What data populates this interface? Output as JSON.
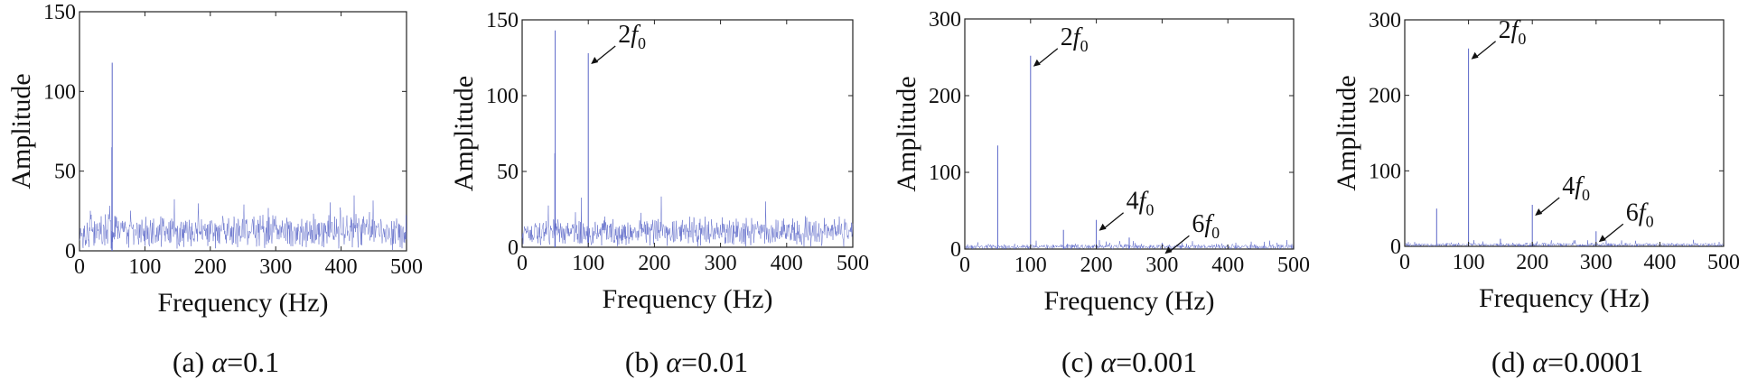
{
  "figure": {
    "panels": [
      {
        "id": "a",
        "caption_prefix": "(a)",
        "caption_symbol": "α",
        "caption_value": "=0.1"
      },
      {
        "id": "b",
        "caption_prefix": "(b)",
        "caption_symbol": "α",
        "caption_value": "=0.01"
      },
      {
        "id": "c",
        "caption_prefix": "(c)",
        "caption_symbol": "α",
        "caption_value": "=0.001"
      },
      {
        "id": "d",
        "caption_prefix": "(d)",
        "caption_symbol": "α",
        "caption_value": "=0.0001"
      }
    ]
  },
  "chart_data": [
    {
      "type": "line",
      "title": "",
      "xlabel": "Frequency (Hz)",
      "ylabel": "Amplitude",
      "xlim": [
        0,
        500
      ],
      "ylim": [
        0,
        150
      ],
      "xticks": [
        0,
        100,
        200,
        300,
        400,
        500
      ],
      "yticks": [
        0,
        50,
        100,
        150
      ],
      "line_color": "#5a66c8",
      "noise": {
        "base": 12,
        "spread": 12,
        "max": 36
      },
      "peaks": [
        {
          "x": 50,
          "y": 118
        },
        {
          "x": 49.5,
          "y": 65
        }
      ],
      "annotations": []
    },
    {
      "type": "line",
      "title": "",
      "xlabel": "Frequency (Hz)",
      "ylabel": "Amplitude",
      "xlim": [
        0,
        500
      ],
      "ylim": [
        0,
        150
      ],
      "xticks": [
        0,
        100,
        200,
        300,
        400,
        500
      ],
      "yticks": [
        0,
        50,
        100,
        150
      ],
      "line_color": "#5a66c8",
      "noise": {
        "base": 10,
        "spread": 11,
        "max": 34
      },
      "peaks": [
        {
          "x": 50,
          "y": 143
        },
        {
          "x": 49.5,
          "y": 62
        },
        {
          "x": 100,
          "y": 128
        }
      ],
      "annotations": [
        {
          "label": "2",
          "sub": "0",
          "x": 100,
          "y": 128
        }
      ]
    },
    {
      "type": "line",
      "title": "",
      "xlabel": "Frequency (Hz)",
      "ylabel": "Amplitude",
      "xlim": [
        0,
        500
      ],
      "ylim": [
        0,
        300
      ],
      "xticks": [
        0,
        100,
        200,
        300,
        400,
        500
      ],
      "yticks": [
        0,
        100,
        200,
        300
      ],
      "line_color": "#5a66c8",
      "noise": {
        "base": 3,
        "spread": 4,
        "max": 12
      },
      "peaks": [
        {
          "x": 50,
          "y": 135
        },
        {
          "x": 100,
          "y": 252
        },
        {
          "x": 150,
          "y": 25
        },
        {
          "x": 200,
          "y": 38
        },
        {
          "x": 250,
          "y": 15
        },
        {
          "x": 300,
          "y": 8
        }
      ],
      "annotations": [
        {
          "label": "2",
          "sub": "0",
          "x": 100,
          "y": 252
        },
        {
          "label": "4",
          "sub": "0",
          "x": 200,
          "y": 38
        },
        {
          "label": "6",
          "sub": "0",
          "x": 300,
          "y": 8
        }
      ]
    },
    {
      "type": "line",
      "title": "",
      "xlabel": "Frequency (Hz)",
      "ylabel": "Amplitude",
      "xlim": [
        0,
        500
      ],
      "ylim": [
        0,
        300
      ],
      "xticks": [
        0,
        100,
        200,
        300,
        400,
        500
      ],
      "yticks": [
        0,
        100,
        200,
        300
      ],
      "line_color": "#5a66c8",
      "noise": {
        "base": 2,
        "spread": 3,
        "max": 9
      },
      "peaks": [
        {
          "x": 50,
          "y": 50
        },
        {
          "x": 100,
          "y": 262
        },
        {
          "x": 150,
          "y": 10
        },
        {
          "x": 200,
          "y": 55
        },
        {
          "x": 300,
          "y": 20
        }
      ],
      "annotations": [
        {
          "label": "2",
          "sub": "0",
          "x": 100,
          "y": 262
        },
        {
          "label": "4",
          "sub": "0",
          "x": 200,
          "y": 55
        },
        {
          "label": "6",
          "sub": "0",
          "x": 300,
          "y": 20
        }
      ]
    }
  ]
}
